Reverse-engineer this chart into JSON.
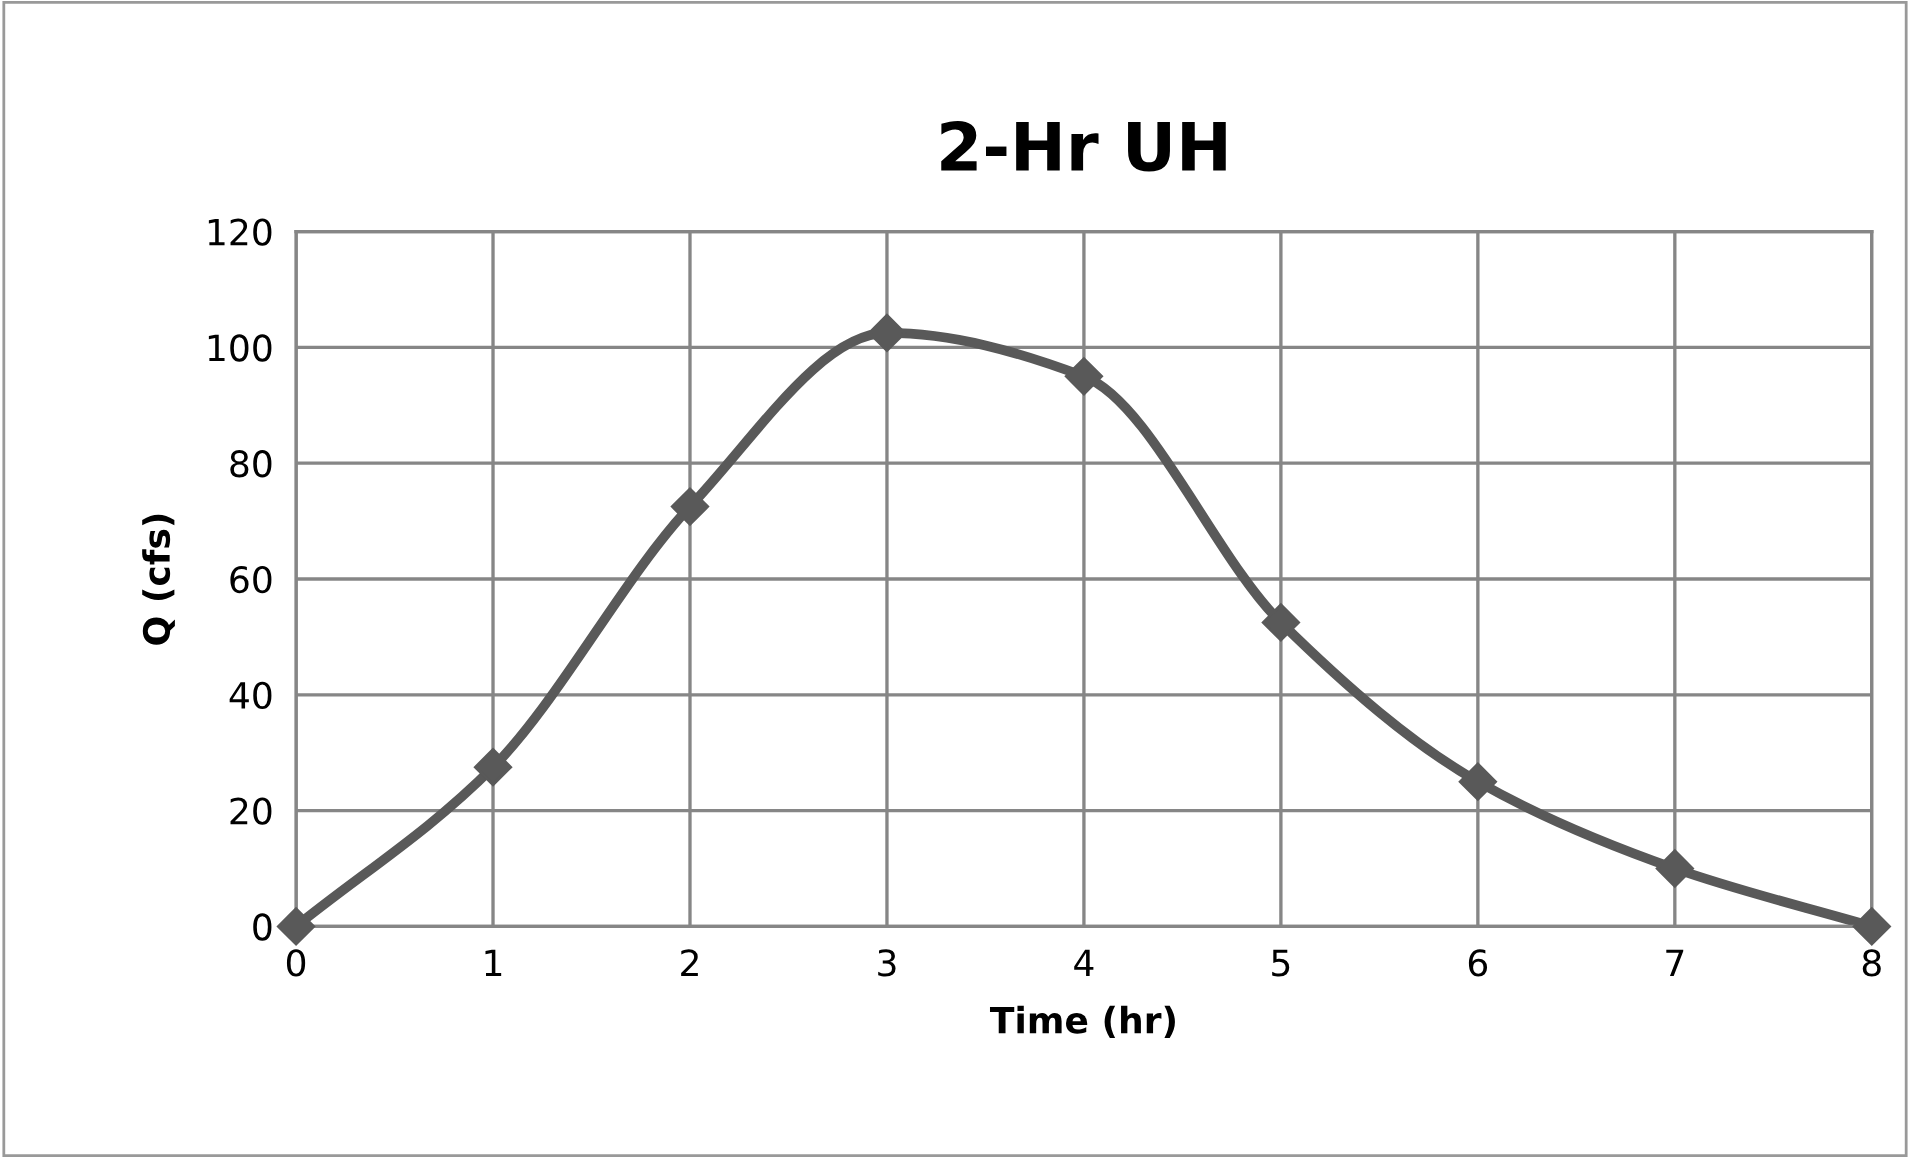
{
  "chart_data": {
    "type": "line",
    "title": "2-Hr UH",
    "xlabel": "Time (hr)",
    "ylabel": "Q (cfs)",
    "x": [
      0,
      1,
      2,
      3,
      4,
      5,
      6,
      7,
      8
    ],
    "series": [
      {
        "color": "#595959",
        "values": [
          0,
          27.5,
          72.5,
          102.5,
          95,
          52.5,
          25,
          10,
          0
        ]
      }
    ],
    "xlim": [
      0,
      8
    ],
    "xticks": [
      0,
      1,
      2,
      3,
      4,
      5,
      6,
      7,
      8
    ],
    "ylim": [
      0,
      120
    ],
    "yticks": [
      0,
      20,
      40,
      60,
      80,
      100,
      120
    ],
    "grid": true,
    "legend": false,
    "marker": "diamond",
    "line_style": "solid"
  }
}
